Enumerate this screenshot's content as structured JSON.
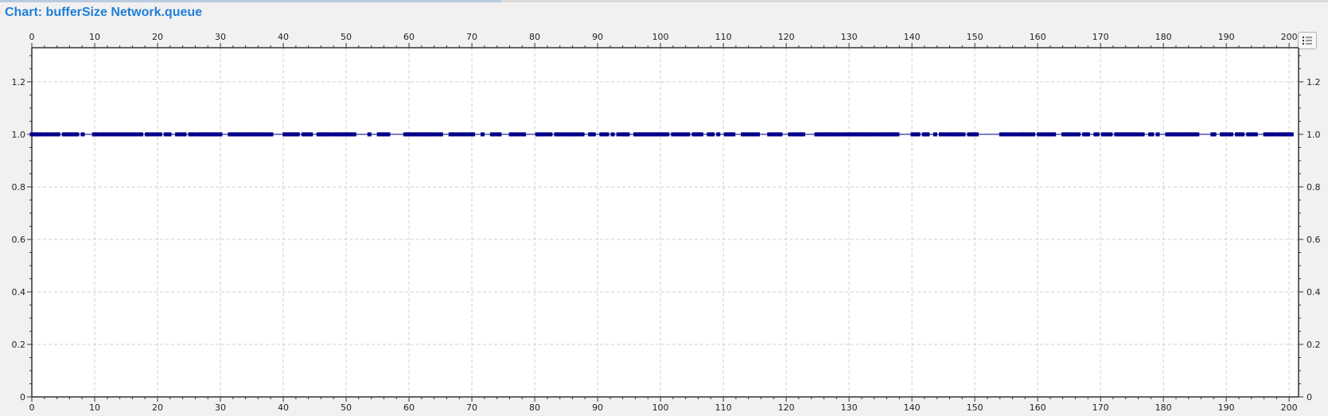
{
  "window": {
    "title": "Chart: bufferSize Network.queue"
  },
  "toolbar": {
    "legend_icon": "list-icon"
  },
  "chart_data": {
    "type": "line",
    "title": "Chart: bufferSize Network.queue",
    "xlabel": "",
    "ylabel": "",
    "xlim": [
      0,
      201.5
    ],
    "ylim": [
      0,
      1.33
    ],
    "x_ticks": [
      0,
      10,
      20,
      30,
      40,
      50,
      60,
      70,
      80,
      90,
      100,
      110,
      120,
      130,
      140,
      150,
      160,
      170,
      180,
      190,
      200
    ],
    "y_ticks": [
      0,
      0.2,
      0.4,
      0.6,
      0.8,
      1.0,
      1.2
    ],
    "y_tick_labels": [
      "0",
      "0.2",
      "0.4",
      "0.6",
      "0.8",
      "1.0",
      "1.2"
    ],
    "grid": true,
    "series": [
      {
        "color": "#00008b",
        "marker": "square",
        "x": [
          0,
          0.3,
          0.6,
          0.9,
          1.2,
          1.5,
          2.1,
          2.4,
          2.7,
          3.3,
          3.9,
          4.2,
          5.1,
          5.4,
          5.7,
          6.0,
          6.3,
          6.6,
          6.9,
          7.2,
          8.1,
          9.9,
          10.2,
          10.5,
          11.1,
          11.4,
          12.0,
          12.3,
          12.6,
          13.2,
          13.5,
          14.1,
          14.4,
          14.7,
          15.3,
          15.6,
          15.9,
          16.2,
          16.8,
          17.4,
          18.3,
          18.6,
          19.2,
          19.8,
          20.4,
          21.3,
          21.9,
          23.1,
          23.4,
          24.0,
          24.3,
          25.2,
          25.5,
          25.8,
          26.4,
          26.7,
          27.0,
          27.3,
          27.6,
          27.9,
          28.2,
          28.5,
          28.8,
          29.1,
          29.4,
          29.7,
          30.0,
          31.5,
          31.8,
          32.1,
          32.4,
          32.7,
          33.0,
          33.3,
          33.6,
          33.9,
          34.2,
          34.5,
          34.8,
          35.1,
          35.4,
          35.7,
          36.0,
          36.3,
          36.6,
          36.9,
          37.2,
          37.5,
          37.8,
          38.1,
          40.2,
          40.5,
          40.8,
          41.1,
          41.4,
          41.7,
          42.0,
          42.3,
          43.2,
          43.5,
          43.8,
          44.1,
          44.4,
          45.6,
          45.9,
          46.2,
          46.5,
          46.8,
          47.1,
          47.4,
          48.0,
          48.3,
          48.6,
          48.9,
          49.2,
          49.5,
          49.8,
          50.1,
          50.4,
          50.7,
          51.0,
          51.3,
          53.7,
          55.2,
          55.5,
          55.8,
          56.1,
          56.4,
          56.7,
          59.4,
          59.7,
          60.0,
          60.3,
          60.6,
          60.9,
          61.2,
          61.5,
          61.8,
          62.1,
          62.4,
          62.7,
          63.0,
          63.3,
          63.6,
          63.9,
          64.2,
          64.8,
          65.1,
          66.6,
          66.9,
          67.2,
          67.8,
          68.4,
          68.7,
          69.0,
          69.6,
          69.9,
          70.2,
          71.7,
          73.2,
          73.5,
          74.1,
          74.4,
          76.2,
          76.5,
          76.8,
          77.4,
          78.0,
          78.3,
          80.4,
          80.7,
          81.0,
          81.3,
          81.6,
          81.9,
          82.5,
          83.4,
          83.7,
          84.0,
          84.3,
          84.9,
          85.2,
          85.5,
          85.8,
          86.1,
          86.4,
          87.0,
          87.3,
          87.6,
          88.8,
          89.1,
          89.4,
          90.6,
          91.2,
          91.5,
          92.4,
          93.3,
          93.9,
          94.2,
          94.5,
          94.8,
          96.0,
          96.3,
          96.6,
          96.9,
          97.2,
          97.5,
          97.8,
          98.1,
          98.4,
          98.7,
          99.0,
          99.3,
          99.6,
          99.9,
          100.2,
          100.5,
          100.8,
          101.1,
          102.0,
          102.3,
          102.6,
          103.2,
          103.5,
          103.8,
          104.1,
          104.4,
          105.3,
          105.6,
          105.9,
          106.2,
          106.5,
          107.7,
          108.0,
          108.3,
          109.2,
          110.4,
          110.7,
          111.0,
          111.3,
          111.6,
          113.1,
          113.4,
          114.0,
          114.3,
          114.6,
          114.9,
          115.2,
          115.5,
          117.3,
          117.6,
          117.9,
          118.5,
          118.8,
          119.1,
          120.6,
          121.2,
          121.5,
          121.8,
          122.1,
          122.4,
          122.7,
          124.8,
          125.1,
          125.4,
          125.7,
          126.0,
          126.3,
          126.6,
          126.9,
          127.2,
          127.5,
          127.8,
          128.1,
          128.4,
          129.0,
          129.3,
          129.6,
          129.9,
          130.2,
          130.5,
          130.8,
          131.1,
          131.4,
          131.7,
          132.0,
          132.3,
          132.6,
          132.9,
          133.2,
          133.5,
          133.8,
          134.4,
          134.7,
          135.0,
          135.3,
          135.6,
          135.9,
          136.2,
          136.5,
          136.8,
          137.1,
          137.4,
          137.7,
          140.1,
          140.4,
          140.7,
          141.0,
          141.9,
          142.2,
          142.5,
          143.7,
          144.6,
          144.9,
          145.5,
          145.8,
          146.1,
          146.4,
          146.7,
          147.0,
          147.3,
          147.6,
          148.2,
          149.1,
          149.4,
          149.7,
          150.0,
          150.3,
          154.2,
          154.5,
          155.1,
          155.4,
          156.0,
          156.6,
          157.2,
          157.5,
          157.8,
          158.1,
          158.4,
          159.0,
          159.3,
          160.2,
          160.8,
          161.1,
          161.4,
          161.7,
          162.0,
          162.3,
          162.6,
          164.1,
          164.4,
          164.7,
          165.0,
          165.3,
          165.6,
          165.9,
          166.2,
          166.5,
          167.4,
          167.7,
          168.0,
          169.2,
          169.5,
          170.4,
          170.7,
          171.0,
          171.3,
          171.6,
          172.5,
          172.8,
          173.1,
          173.4,
          173.7,
          174.0,
          174.3,
          174.6,
          174.9,
          175.2,
          175.5,
          175.8,
          176.1,
          176.4,
          176.7,
          177.9,
          178.2,
          179.1,
          180.6,
          180.9,
          181.2,
          181.5,
          181.8,
          182.1,
          182.4,
          182.7,
          183.0,
          183.3,
          183.6,
          183.9,
          184.2,
          184.5,
          184.8,
          185.1,
          185.4,
          187.8,
          188.1,
          189.3,
          189.6,
          189.9,
          190.5,
          190.8,
          191.7,
          192.0,
          192.3,
          192.6,
          193.5,
          193.8,
          194.1,
          194.7,
          196.2,
          196.5,
          196.8,
          197.1,
          197.4,
          197.7,
          198.3,
          198.6,
          198.9,
          199.2,
          199.5,
          199.8,
          200.1,
          200.4
        ]
      }
    ],
    "y_value": 1.0
  }
}
